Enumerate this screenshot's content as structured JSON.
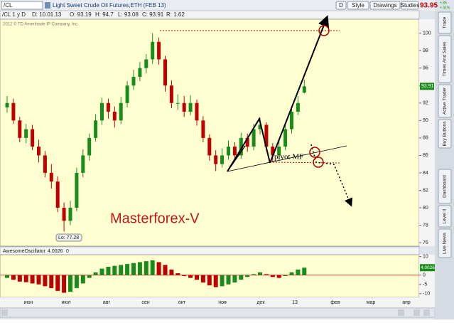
{
  "toolbar": {
    "symbol": "/CL",
    "description": "Light Sweet Crude Oil Futures,ETH (FEB 13)",
    "buttons": [
      "D",
      "Style",
      "Drawings",
      "Studies"
    ],
    "last": "93.95",
    "change": "+.85",
    "change_pct": "+.91%"
  },
  "info": {
    "symbol": "/CL 1 y D",
    "items": [
      "D: 10.01.13",
      "O: 93.19",
      "H: 94.7",
      "L: 93.08",
      "C: 93.91",
      "R: 1.62"
    ]
  },
  "copyright": "2012 © TD Ameritrade IP Company, Inc.",
  "side_tabs": [
    "Trade",
    "Times And Sales",
    "Active Trader",
    "Buy Buttons",
    "Dashboard",
    "Level II",
    "Live News"
  ],
  "chart_data": [
    {
      "type": "candlestick",
      "annotations": [
        "Masterforex-V",
        "pivot MF",
        "Lo: 77.28"
      ],
      "xlabels": [
        "июн",
        "июл",
        "авг",
        "сен",
        "окт",
        "ноя",
        "дек",
        "13",
        "фев",
        "мар",
        "апр"
      ],
      "ylim": [
        75.6,
        101.6
      ],
      "yticks": [
        76,
        78,
        80,
        82,
        84,
        86,
        88,
        90,
        92,
        94,
        96,
        98,
        100
      ],
      "colors": {
        "up": "#1a8c1a",
        "down": "#c00000"
      },
      "candles": [
        {
          "o": 91.5,
          "h": 92.8,
          "l": 90.9,
          "c": 92
        },
        {
          "o": 92,
          "h": 92.5,
          "l": 89.6,
          "c": 90
        },
        {
          "o": 90,
          "h": 90.4,
          "l": 87.5,
          "c": 88
        },
        {
          "o": 88,
          "h": 89.6,
          "l": 87.4,
          "c": 89
        },
        {
          "o": 89,
          "h": 89.5,
          "l": 86.6,
          "c": 87
        },
        {
          "o": 87,
          "h": 87.8,
          "l": 85.2,
          "c": 86
        },
        {
          "o": 86,
          "h": 86.5,
          "l": 83.5,
          "c": 84
        },
        {
          "o": 84,
          "h": 85,
          "l": 82.2,
          "c": 83
        },
        {
          "o": 83,
          "h": 83.6,
          "l": 79.5,
          "c": 80
        },
        {
          "o": 80,
          "h": 80.6,
          "l": 77.28,
          "c": 78.5
        },
        {
          "o": 78.5,
          "h": 80.8,
          "l": 78,
          "c": 80
        },
        {
          "o": 80,
          "h": 84.6,
          "l": 79.6,
          "c": 84
        },
        {
          "o": 84,
          "h": 86.7,
          "l": 83.5,
          "c": 86
        },
        {
          "o": 86,
          "h": 88.5,
          "l": 85.4,
          "c": 88
        },
        {
          "o": 88,
          "h": 90.7,
          "l": 87.6,
          "c": 90
        },
        {
          "o": 90,
          "h": 92.6,
          "l": 89.5,
          "c": 92
        },
        {
          "o": 92,
          "h": 92.5,
          "l": 90.2,
          "c": 91
        },
        {
          "o": 91,
          "h": 91.6,
          "l": 89.2,
          "c": 90
        },
        {
          "o": 90,
          "h": 92.7,
          "l": 89.6,
          "c": 92
        },
        {
          "o": 92,
          "h": 94.5,
          "l": 91.5,
          "c": 94
        },
        {
          "o": 94,
          "h": 95.8,
          "l": 93.5,
          "c": 95
        },
        {
          "o": 95,
          "h": 96.7,
          "l": 94.5,
          "c": 96
        },
        {
          "o": 96,
          "h": 97.6,
          "l": 95.4,
          "c": 97
        },
        {
          "o": 97,
          "h": 100,
          "l": 96.5,
          "c": 99
        },
        {
          "o": 99,
          "h": 99.5,
          "l": 96.4,
          "c": 97
        },
        {
          "o": 97,
          "h": 97.4,
          "l": 93.3,
          "c": 94
        },
        {
          "o": 94,
          "h": 94.6,
          "l": 91.4,
          "c": 92
        },
        {
          "o": 92,
          "h": 93,
          "l": 91.2,
          "c": 92
        },
        {
          "o": 92,
          "h": 92.8,
          "l": 90.4,
          "c": 91
        },
        {
          "o": 91,
          "h": 92.9,
          "l": 90.6,
          "c": 92
        },
        {
          "o": 92,
          "h": 92.4,
          "l": 89.4,
          "c": 90
        },
        {
          "o": 90,
          "h": 90.5,
          "l": 87.5,
          "c": 88
        },
        {
          "o": 88,
          "h": 88.4,
          "l": 85.4,
          "c": 86
        },
        {
          "o": 86,
          "h": 86.6,
          "l": 84.2,
          "c": 85
        },
        {
          "o": 85,
          "h": 86.8,
          "l": 84.6,
          "c": 86
        },
        {
          "o": 86,
          "h": 87.7,
          "l": 85.5,
          "c": 87
        },
        {
          "o": 87,
          "h": 87.5,
          "l": 85.3,
          "c": 86
        },
        {
          "o": 86,
          "h": 88.6,
          "l": 85.6,
          "c": 88
        },
        {
          "o": 88,
          "h": 88.5,
          "l": 86.4,
          "c": 87
        },
        {
          "o": 87,
          "h": 89.6,
          "l": 86.6,
          "c": 89
        },
        {
          "o": 89,
          "h": 90.3,
          "l": 88.4,
          "c": 89.5
        },
        {
          "o": 89.5,
          "h": 89.8,
          "l": 86.5,
          "c": 87
        },
        {
          "o": 87,
          "h": 87.4,
          "l": 85.2,
          "c": 86
        },
        {
          "o": 86,
          "h": 87.6,
          "l": 85.5,
          "c": 87
        },
        {
          "o": 87,
          "h": 89.5,
          "l": 86.6,
          "c": 89
        },
        {
          "o": 89,
          "h": 91.6,
          "l": 88.5,
          "c": 91
        },
        {
          "o": 91,
          "h": 92.8,
          "l": 90.6,
          "c": 92
        },
        {
          "o": 93.19,
          "h": 94.7,
          "l": 93.08,
          "c": 93.91
        }
      ]
    },
    {
      "type": "bar",
      "title": "AwesomeOscillator",
      "param": "0",
      "ylim": [
        -12,
        11
      ],
      "yticks": [
        10,
        0,
        -5,
        -10
      ],
      "colors": {
        "up": "#1a8c1a",
        "down": "#c00000"
      },
      "values": [
        -1.5,
        -2.5,
        -3.5,
        -3.8,
        -4.5,
        -5,
        -6,
        -7,
        -8.5,
        -9.5,
        -9,
        -7,
        -4.5,
        -1.5,
        1.5,
        3.5,
        4.5,
        5,
        5.5,
        6,
        6.5,
        7,
        7.5,
        8,
        7,
        5.5,
        3,
        1,
        -0.5,
        -1.5,
        -2.5,
        -4,
        -5.5,
        -6.5,
        -6,
        -5,
        -4,
        -2.5,
        -1,
        0.5,
        1.5,
        0.5,
        -1,
        -1.5,
        -0.5,
        1.5,
        3,
        4.0026
      ]
    }
  ]
}
